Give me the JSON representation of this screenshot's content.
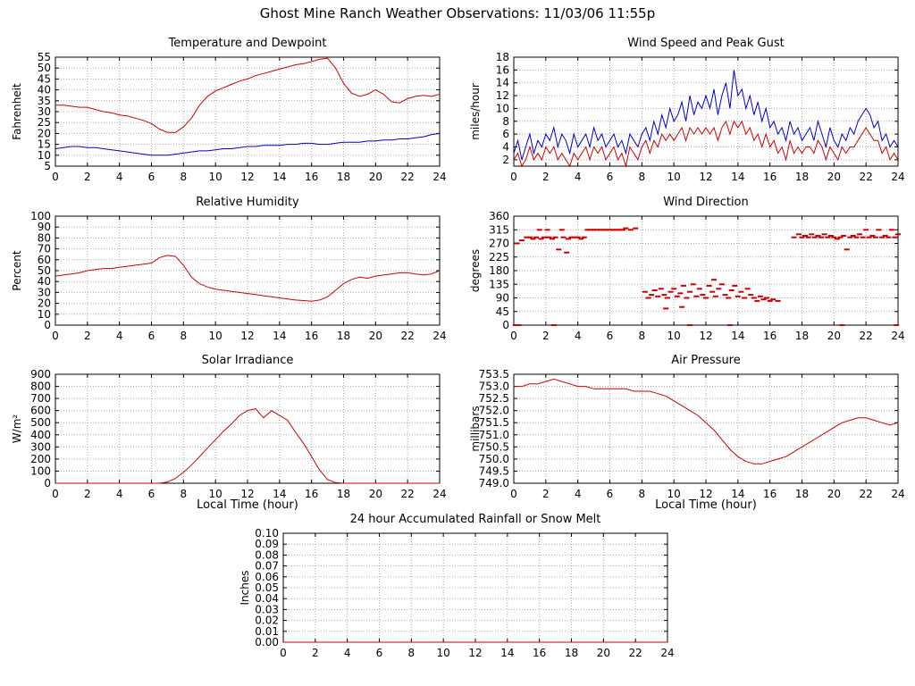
{
  "page_title": "Ghost Mine Ranch Weather Observations: 11/03/06 11:55p",
  "colors": {
    "red": "#cc0000",
    "blue": "#0000cc",
    "grid": "#a8a8a8",
    "axis": "#000000"
  },
  "chart_data": [
    {
      "id": "temperature-dewpoint",
      "type": "line",
      "title": "Temperature and Dewpoint",
      "xlabel": "",
      "ylabel": "Fahrenheit",
      "xlim": [
        0,
        24
      ],
      "xticks": [
        0,
        2,
        4,
        6,
        8,
        10,
        12,
        14,
        16,
        18,
        20,
        22,
        24
      ],
      "ylim": [
        5,
        55
      ],
      "yticks": [
        5,
        10,
        15,
        20,
        25,
        30,
        35,
        40,
        45,
        50,
        55
      ],
      "ytick_decimals": 0,
      "x_step": 0.5,
      "grid": true,
      "legend": "none",
      "series": [
        {
          "name": "Temperature",
          "color": "red",
          "values": [
            33,
            33,
            32.5,
            32,
            32,
            31,
            30,
            29.5,
            28.5,
            28,
            27,
            26,
            24.5,
            22,
            20.5,
            20.5,
            23,
            27,
            33,
            37,
            39.5,
            41,
            42.5,
            44,
            45,
            46.5,
            47.5,
            48.5,
            49.5,
            50.5,
            51.5,
            52,
            53,
            54,
            54.5,
            50,
            43,
            38.5,
            37,
            38,
            40,
            38,
            34.5,
            34,
            36,
            37,
            37.5,
            37,
            38
          ]
        },
        {
          "name": "Dewpoint",
          "color": "blue",
          "values": [
            13,
            13.5,
            14,
            14,
            13.5,
            13.5,
            13,
            12.5,
            12,
            11.5,
            11,
            10.5,
            10,
            10,
            10,
            10.5,
            11,
            11.5,
            12,
            12,
            12.5,
            13,
            13,
            13.5,
            14,
            14,
            14.5,
            14.5,
            14.5,
            15,
            15,
            15.5,
            15.5,
            15,
            15,
            15.5,
            16,
            16,
            16,
            16.5,
            16.5,
            17,
            17,
            17.5,
            17.5,
            18,
            18.5,
            19.5,
            20
          ]
        }
      ]
    },
    {
      "id": "wind-speed-gust",
      "type": "line",
      "title": "Wind Speed and Peak Gust",
      "xlabel": "",
      "ylabel": "miles/hour",
      "xlim": [
        0,
        24
      ],
      "xticks": [
        0,
        2,
        4,
        6,
        8,
        10,
        12,
        14,
        16,
        18,
        20,
        22,
        24
      ],
      "ylim": [
        1,
        18
      ],
      "yticks": [
        2,
        4,
        6,
        8,
        10,
        12,
        14,
        16,
        18
      ],
      "ytick_decimals": 0,
      "x_step": 0.25,
      "grid": true,
      "legend": "none",
      "series": [
        {
          "name": "Peak Gust",
          "color": "blue",
          "values": [
            3,
            5,
            2,
            4,
            6,
            3,
            5,
            4,
            6,
            5,
            7,
            4,
            6,
            5,
            3,
            6,
            4,
            5,
            6,
            4,
            7,
            5,
            6,
            4,
            5,
            6,
            4,
            5,
            3,
            6,
            5,
            4,
            6,
            7,
            5,
            8,
            6,
            9,
            7,
            10,
            8,
            9,
            11,
            8,
            12,
            9,
            11,
            10,
            12,
            10,
            13,
            9,
            12,
            14,
            10,
            16,
            12,
            13,
            10,
            12,
            9,
            11,
            8,
            10,
            7,
            8,
            6,
            7,
            5,
            8,
            6,
            7,
            5,
            6,
            7,
            5,
            8,
            6,
            4,
            7,
            5,
            4,
            6,
            5,
            7,
            6,
            8,
            9,
            10,
            9,
            7,
            8,
            5,
            6,
            4,
            5,
            4
          ]
        },
        {
          "name": "Wind Speed",
          "color": "red",
          "values": [
            2,
            3,
            1,
            2,
            4,
            2,
            3,
            2,
            4,
            3,
            4,
            2,
            3,
            2,
            1,
            3,
            2,
            3,
            4,
            2,
            4,
            3,
            4,
            2,
            3,
            4,
            2,
            3,
            1,
            4,
            3,
            2,
            4,
            5,
            3,
            5,
            4,
            6,
            5,
            6,
            5,
            6,
            7,
            5,
            7,
            6,
            7,
            6,
            7,
            6,
            7,
            5,
            7,
            8,
            6,
            8,
            7,
            8,
            6,
            7,
            5,
            6,
            4,
            6,
            4,
            5,
            3,
            4,
            2,
            5,
            3,
            4,
            3,
            4,
            4,
            3,
            5,
            4,
            2,
            4,
            3,
            2,
            4,
            3,
            4,
            4,
            5,
            6,
            7,
            6,
            5,
            5,
            3,
            4,
            2,
            3,
            2
          ]
        }
      ]
    },
    {
      "id": "relative-humidity",
      "type": "line",
      "title": "Relative Humidity",
      "xlabel": "",
      "ylabel": "Percent",
      "xlim": [
        0,
        24
      ],
      "xticks": [
        0,
        2,
        4,
        6,
        8,
        10,
        12,
        14,
        16,
        18,
        20,
        22,
        24
      ],
      "ylim": [
        0,
        100
      ],
      "yticks": [
        0,
        10,
        20,
        30,
        40,
        50,
        60,
        70,
        80,
        90,
        100
      ],
      "ytick_decimals": 0,
      "x_step": 0.5,
      "grid": true,
      "legend": "none",
      "series": [
        {
          "name": "Relative Humidity",
          "color": "red",
          "values": [
            45,
            46,
            47,
            48,
            50,
            51,
            52,
            52,
            53,
            54,
            55,
            56,
            57,
            62,
            64,
            63,
            55,
            44,
            38,
            35,
            33,
            32,
            31,
            30,
            29,
            28,
            27,
            26,
            25,
            24,
            23,
            22.5,
            22,
            23,
            26,
            32,
            38,
            42,
            44,
            43,
            45,
            46,
            47,
            48,
            48,
            47,
            46,
            47,
            50
          ]
        }
      ]
    },
    {
      "id": "wind-direction",
      "type": "scatter",
      "title": "Wind Direction",
      "xlabel": "",
      "ylabel": "degrees",
      "xlim": [
        0,
        24
      ],
      "xticks": [
        0,
        2,
        4,
        6,
        8,
        10,
        12,
        14,
        16,
        18,
        20,
        22,
        24
      ],
      "ylim": [
        0,
        360
      ],
      "yticks": [
        0,
        45,
        90,
        135,
        180,
        225,
        270,
        315,
        360
      ],
      "ytick_decimals": 0,
      "marker": "dash",
      "grid": true,
      "legend": "none",
      "points": [
        [
          0.1,
          0
        ],
        [
          0.3,
          0
        ],
        [
          0.2,
          270
        ],
        [
          0.5,
          280
        ],
        [
          0.8,
          290
        ],
        [
          1.0,
          290
        ],
        [
          1.2,
          285
        ],
        [
          1.4,
          290
        ],
        [
          1.6,
          315
        ],
        [
          1.7,
          285
        ],
        [
          1.9,
          290
        ],
        [
          2.1,
          315
        ],
        [
          2.2,
          290
        ],
        [
          2.4,
          285
        ],
        [
          2.5,
          0
        ],
        [
          2.6,
          290
        ],
        [
          2.8,
          250
        ],
        [
          3.0,
          315
        ],
        [
          3.1,
          290
        ],
        [
          3.3,
          240
        ],
        [
          3.4,
          285
        ],
        [
          3.6,
          290
        ],
        [
          3.8,
          290
        ],
        [
          4.0,
          290
        ],
        [
          4.2,
          285
        ],
        [
          4.4,
          290
        ],
        [
          4.6,
          315
        ],
        [
          4.8,
          315
        ],
        [
          5.0,
          315
        ],
        [
          5.2,
          315
        ],
        [
          5.4,
          315
        ],
        [
          5.6,
          315
        ],
        [
          5.8,
          315
        ],
        [
          6.0,
          315
        ],
        [
          6.2,
          315
        ],
        [
          6.4,
          315
        ],
        [
          6.6,
          315
        ],
        [
          6.8,
          315
        ],
        [
          7.0,
          320
        ],
        [
          7.3,
          315
        ],
        [
          7.6,
          320
        ],
        [
          8.2,
          110
        ],
        [
          8.4,
          90
        ],
        [
          8.6,
          100
        ],
        [
          8.8,
          115
        ],
        [
          9.0,
          95
        ],
        [
          9.2,
          120
        ],
        [
          9.4,
          100
        ],
        [
          9.5,
          55
        ],
        [
          9.6,
          90
        ],
        [
          9.8,
          110
        ],
        [
          10.0,
          120
        ],
        [
          10.2,
          95
        ],
        [
          10.4,
          105
        ],
        [
          10.5,
          60
        ],
        [
          10.6,
          130
        ],
        [
          10.8,
          90
        ],
        [
          11.0,
          110
        ],
        [
          11.2,
          135
        ],
        [
          11.4,
          95
        ],
        [
          11.6,
          120
        ],
        [
          11.8,
          100
        ],
        [
          12.0,
          90
        ],
        [
          12.2,
          130
        ],
        [
          12.4,
          110
        ],
        [
          12.5,
          150
        ],
        [
          12.6,
          95
        ],
        [
          12.8,
          120
        ],
        [
          13.0,
          135
        ],
        [
          13.2,
          100
        ],
        [
          13.4,
          90
        ],
        [
          13.6,
          115
        ],
        [
          13.8,
          130
        ],
        [
          14.0,
          95
        ],
        [
          14.2,
          110
        ],
        [
          14.4,
          90
        ],
        [
          14.6,
          120
        ],
        [
          14.8,
          100
        ],
        [
          15.0,
          90
        ],
        [
          15.2,
          80
        ],
        [
          15.4,
          95
        ],
        [
          15.6,
          85
        ],
        [
          15.8,
          90
        ],
        [
          16.0,
          80
        ],
        [
          16.2,
          85
        ],
        [
          16.5,
          80
        ],
        [
          11.0,
          0
        ],
        [
          13.5,
          0
        ],
        [
          17.5,
          290
        ],
        [
          17.8,
          300
        ],
        [
          18.0,
          290
        ],
        [
          18.2,
          295
        ],
        [
          18.4,
          290
        ],
        [
          18.6,
          300
        ],
        [
          18.8,
          290
        ],
        [
          19.0,
          295
        ],
        [
          19.2,
          290
        ],
        [
          19.4,
          300
        ],
        [
          19.6,
          290
        ],
        [
          19.8,
          295
        ],
        [
          20.0,
          290
        ],
        [
          20.2,
          285
        ],
        [
          20.4,
          290
        ],
        [
          20.6,
          295
        ],
        [
          20.8,
          250
        ],
        [
          20.5,
          0
        ],
        [
          21.0,
          290
        ],
        [
          21.2,
          295
        ],
        [
          21.4,
          290
        ],
        [
          21.6,
          300
        ],
        [
          21.8,
          290
        ],
        [
          22.0,
          315
        ],
        [
          22.2,
          290
        ],
        [
          22.4,
          295
        ],
        [
          22.6,
          290
        ],
        [
          22.8,
          315
        ],
        [
          23.0,
          290
        ],
        [
          23.2,
          295
        ],
        [
          23.4,
          290
        ],
        [
          23.6,
          315
        ],
        [
          23.8,
          290
        ],
        [
          23.9,
          0
        ],
        [
          24.0,
          300
        ]
      ]
    },
    {
      "id": "solar-irradiance",
      "type": "line",
      "title": "Solar Irradiance",
      "xlabel": "Local Time (hour)",
      "ylabel": "W/m²",
      "xlim": [
        0,
        24
      ],
      "xticks": [
        0,
        2,
        4,
        6,
        8,
        10,
        12,
        14,
        16,
        18,
        20,
        22,
        24
      ],
      "ylim": [
        0,
        900
      ],
      "yticks": [
        0,
        100,
        200,
        300,
        400,
        500,
        600,
        700,
        800,
        900
      ],
      "ytick_decimals": 0,
      "x_step": 0.5,
      "grid": true,
      "legend": "none",
      "series": [
        {
          "name": "Solar Irradiance",
          "color": "red",
          "values": [
            0,
            0,
            0,
            0,
            0,
            0,
            0,
            0,
            0,
            0,
            0,
            0,
            0,
            0,
            10,
            40,
            90,
            150,
            220,
            290,
            360,
            430,
            490,
            560,
            600,
            615,
            540,
            600,
            560,
            520,
            420,
            330,
            220,
            110,
            30,
            5,
            0,
            0,
            0,
            0,
            0,
            0,
            0,
            0,
            0,
            0,
            0,
            0,
            0
          ]
        }
      ]
    },
    {
      "id": "air-pressure",
      "type": "line",
      "title": "Air Pressure",
      "xlabel": "Local Time (hour)",
      "ylabel": "millibars",
      "xlim": [
        0,
        24
      ],
      "xticks": [
        0,
        2,
        4,
        6,
        8,
        10,
        12,
        14,
        16,
        18,
        20,
        22,
        24
      ],
      "ylim": [
        749.0,
        753.5
      ],
      "yticks": [
        749.0,
        749.5,
        750.0,
        750.5,
        751.0,
        751.5,
        752.0,
        752.5,
        753.0,
        753.5
      ],
      "ytick_decimals": 1,
      "x_step": 0.5,
      "grid": true,
      "legend": "none",
      "series": [
        {
          "name": "Air Pressure",
          "color": "red",
          "values": [
            753.0,
            753.0,
            753.1,
            753.1,
            753.2,
            753.3,
            753.2,
            753.1,
            753.0,
            753.0,
            752.9,
            752.9,
            752.9,
            752.9,
            752.9,
            752.8,
            752.8,
            752.8,
            752.7,
            752.6,
            752.4,
            752.2,
            752.0,
            751.8,
            751.5,
            751.2,
            750.8,
            750.4,
            750.1,
            749.9,
            749.8,
            749.8,
            749.9,
            750.0,
            750.1,
            750.3,
            750.5,
            750.7,
            750.9,
            751.1,
            751.3,
            751.5,
            751.6,
            751.7,
            751.7,
            751.6,
            751.5,
            751.4,
            751.5
          ]
        }
      ]
    },
    {
      "id": "accumulated-rainfall",
      "type": "line",
      "title": "24 hour Accumulated Rainfall or Snow Melt",
      "xlabel": "",
      "ylabel": "Inches",
      "xlim": [
        0,
        24
      ],
      "xticks": [
        0,
        2,
        4,
        6,
        8,
        10,
        12,
        14,
        16,
        18,
        20,
        22,
        24
      ],
      "ylim": [
        0,
        0.1
      ],
      "yticks": [
        0,
        0.01,
        0.02,
        0.03,
        0.04,
        0.05,
        0.06,
        0.07,
        0.08,
        0.09,
        0.1
      ],
      "ytick_decimals": 2,
      "x_step": 24,
      "grid": true,
      "legend": "none",
      "series": [
        {
          "name": "Accumulated Rainfall",
          "color": "red",
          "values": [
            0,
            0
          ]
        }
      ]
    }
  ]
}
